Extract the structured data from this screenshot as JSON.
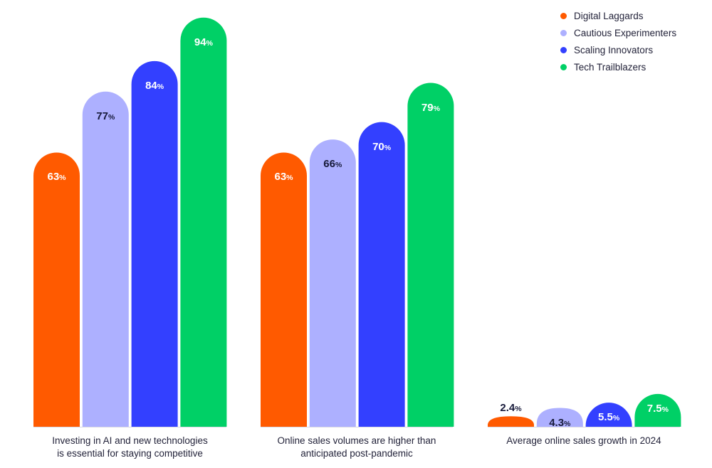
{
  "chart_data": {
    "type": "bar",
    "categories": [
      "Investing in AI and new technologies is essential for staying competitive",
      "Online sales volumes are higher than anticipated post-pandemic",
      "Average online sales growth in 2024"
    ],
    "category_lines": [
      [
        "Investing in AI and new technologies",
        "is essential for staying competitive"
      ],
      [
        "Online sales volumes are higher than",
        "anticipated post-pandemic"
      ],
      [
        "Average online sales growth in 2024"
      ]
    ],
    "series": [
      {
        "name": "Digital Laggards",
        "color": "#ff5a00",
        "values": [
          63,
          63,
          2.4
        ],
        "labels": [
          "63",
          "63",
          "2.4"
        ]
      },
      {
        "name": "Cautious Experimenters",
        "color": "#adb0ff",
        "values": [
          77,
          66,
          4.3
        ],
        "labels": [
          "77",
          "66",
          "4.3"
        ]
      },
      {
        "name": "Scaling Innovators",
        "color": "#3340ff",
        "values": [
          84,
          70,
          5.5
        ],
        "labels": [
          "84",
          "70",
          "5.5"
        ]
      },
      {
        "name": "Tech Trailblazers",
        "color": "#00d066",
        "values": [
          94,
          79,
          7.5
        ],
        "labels": [
          "94",
          "79",
          "7.5"
        ]
      }
    ],
    "unit": "%",
    "ylim": [
      0,
      100
    ],
    "grid": false,
    "legend": "top-right",
    "title": "",
    "xlabel": "",
    "ylabel": ""
  }
}
